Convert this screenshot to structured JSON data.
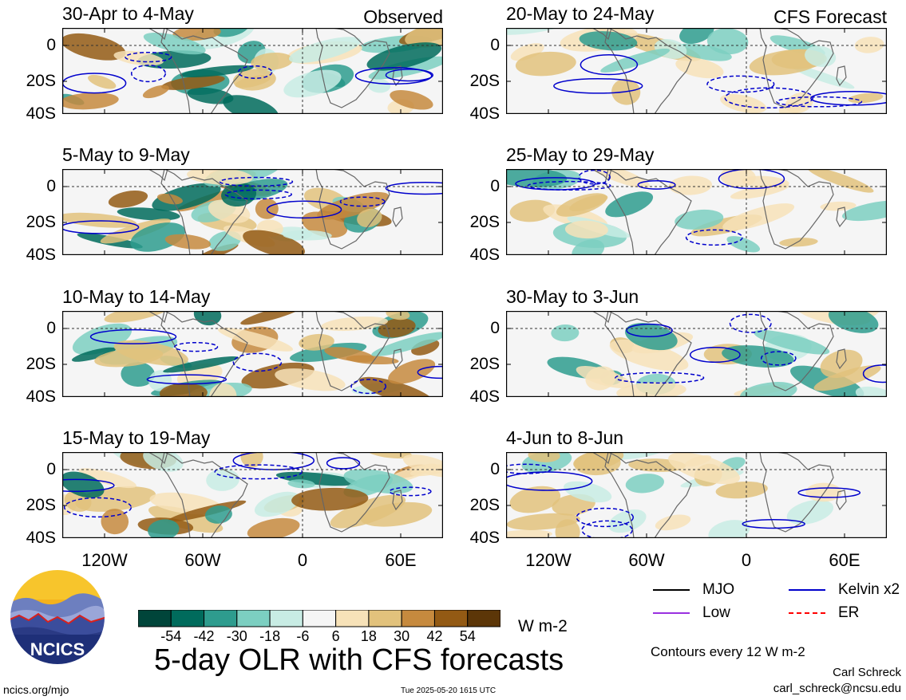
{
  "labels": {
    "observed": "Observed",
    "forecast": "CFS Forecast"
  },
  "panels": [
    {
      "title": "30-Apr to 4-May",
      "column": 0,
      "row": 0,
      "label_key": "observed"
    },
    {
      "title": "5-May to 9-May",
      "column": 0,
      "row": 1
    },
    {
      "title": "10-May to 14-May",
      "column": 0,
      "row": 2
    },
    {
      "title": "15-May to 19-May",
      "column": 0,
      "row": 3
    },
    {
      "title": "20-May to 24-May",
      "column": 1,
      "row": 0,
      "label_key": "forecast"
    },
    {
      "title": "25-May to 29-May",
      "column": 1,
      "row": 1
    },
    {
      "title": "30-May to 3-Jun",
      "column": 1,
      "row": 2
    },
    {
      "title": "4-Jun to 8-Jun",
      "column": 1,
      "row": 3
    }
  ],
  "latitude_labels": [
    "0",
    "20S",
    "40S"
  ],
  "longitude_labels": [
    "120W",
    "60W",
    "0",
    "60E"
  ],
  "colorbar": {
    "ticks": [
      "-54",
      "-42",
      "-30",
      "-18",
      "-6",
      "6",
      "18",
      "30",
      "42",
      "54"
    ],
    "colors": [
      "#00453a",
      "#006b5c",
      "#2e9c8e",
      "#7ccfc1",
      "#c8ece4",
      "#f5f5f5",
      "#f7e2b8",
      "#e2c27c",
      "#c68a3e",
      "#935a14",
      "#5c3608"
    ],
    "units": "W m-2"
  },
  "legend": [
    {
      "name": "MJO",
      "color": "#000000",
      "style": "solid"
    },
    {
      "name": "Kelvin x2",
      "color": "#0000cc",
      "style": "solid"
    },
    {
      "name": "Low",
      "color": "#9a30e0",
      "style": "solid"
    },
    {
      "name": "ER",
      "color": "#ff0000",
      "style": "dashed"
    }
  ],
  "contour_note": "Contours every 12 W m-2",
  "title": "5-day OLR with CFS forecasts",
  "logo_text": "NCICS",
  "website": "ncics.org/mjo",
  "timestamp": "Tue 2025-05-20 1615 UTC",
  "author": "Carl Schreck",
  "email": "carl_schreck@ncsu.edu"
}
